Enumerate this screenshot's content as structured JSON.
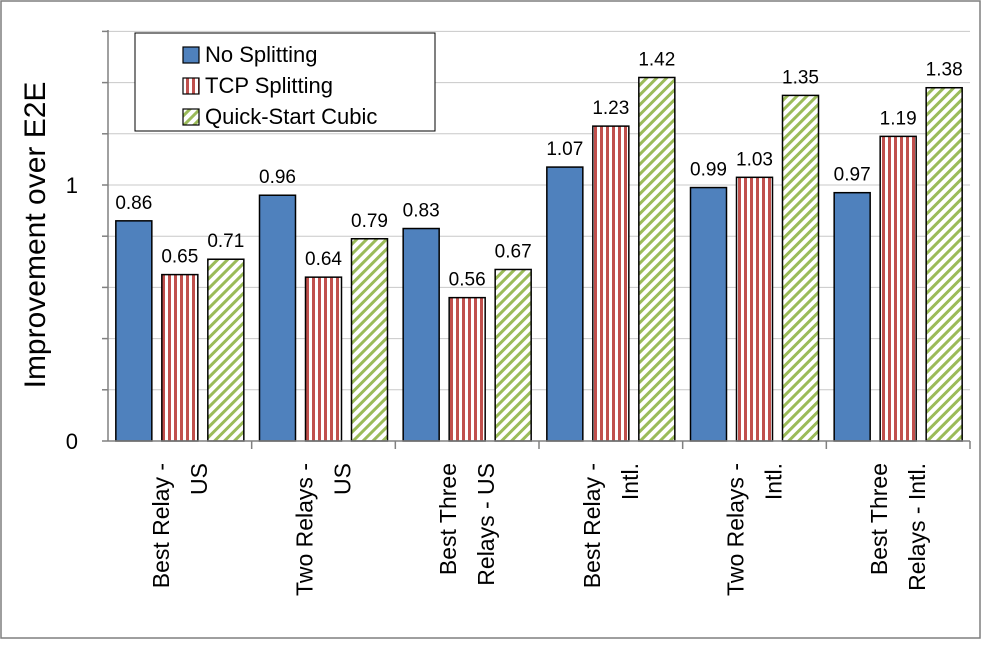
{
  "chart_data": {
    "type": "bar",
    "title": "",
    "xlabel": "",
    "ylabel": "Improvement over E2E",
    "ylim": [
      0,
      1.6
    ],
    "yticks": [
      0,
      1
    ],
    "grid": true,
    "legend_position": "top-left",
    "categories": [
      [
        "Best Relay -",
        "US"
      ],
      [
        "Two Relays -",
        "US"
      ],
      [
        "Best Three",
        "Relays - US"
      ],
      [
        "Best Relay -",
        "Intl."
      ],
      [
        "Two Relays -",
        "Intl."
      ],
      [
        "Best Three",
        "Relays - Intl."
      ]
    ],
    "series": [
      {
        "name": "No Splitting",
        "values": [
          0.86,
          0.96,
          0.83,
          1.07,
          0.99,
          0.97
        ],
        "color": "#4f81bd",
        "pattern": "solid"
      },
      {
        "name": "TCP Splitting",
        "values": [
          0.65,
          0.64,
          0.56,
          1.23,
          1.03,
          1.19
        ],
        "color": "#c0504d",
        "pattern": "vertical-stripes"
      },
      {
        "name": "Quick-Start Cubic",
        "values": [
          0.71,
          0.79,
          0.67,
          1.42,
          1.35,
          1.38
        ],
        "color": "#9bbb59",
        "pattern": "diagonal-stripes"
      }
    ]
  }
}
